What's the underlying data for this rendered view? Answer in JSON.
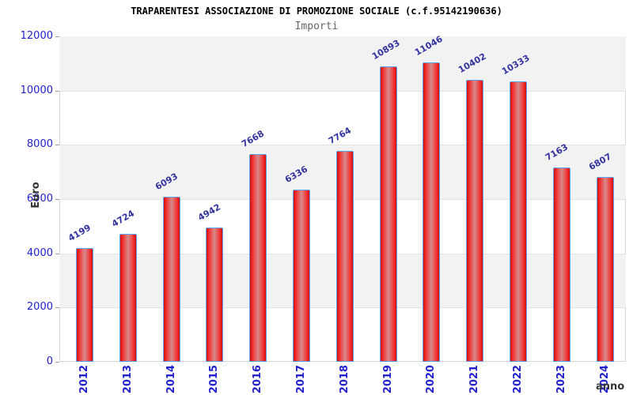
{
  "chart_data": {
    "type": "bar",
    "title": "TRAPARENTESI ASSOCIAZIONE DI PROMOZIONE SOCIALE (c.f.95142190636)",
    "subtitle": "Importi",
    "xlabel": "anno",
    "ylabel": "Euro",
    "categories": [
      "2012",
      "2013",
      "2014",
      "2015",
      "2016",
      "2017",
      "2018",
      "2019",
      "2020",
      "2021",
      "2022",
      "2023",
      "2024"
    ],
    "values": [
      4199,
      4724,
      6093,
      4942,
      7668,
      6336,
      7764,
      10893,
      11046,
      10402,
      10333,
      7163,
      6807
    ],
    "ylim": [
      0,
      12000
    ],
    "yticks": [
      0,
      2000,
      4000,
      6000,
      8000,
      10000,
      12000
    ],
    "grid": "alternating horizontal gray bands every 2000",
    "legend_position": "none",
    "value_label_rotation_deg": -30,
    "x_tick_rotation_deg": -90,
    "colors": {
      "bar_edge_red": "#cf0e0e",
      "bar_mid_highlight": "#d68b8b",
      "bar_border_blue": "#58a6f0",
      "value_label_navy": "#3333a0",
      "tick_label_blue": "#2222cc",
      "band_gray": "#f2f2f2",
      "grid_line": "#e2e2e2",
      "plot_border": "#d6d6d6",
      "title_black": "#000000",
      "subtitle_gray": "#666666",
      "axis_title_gray": "#333333"
    }
  }
}
